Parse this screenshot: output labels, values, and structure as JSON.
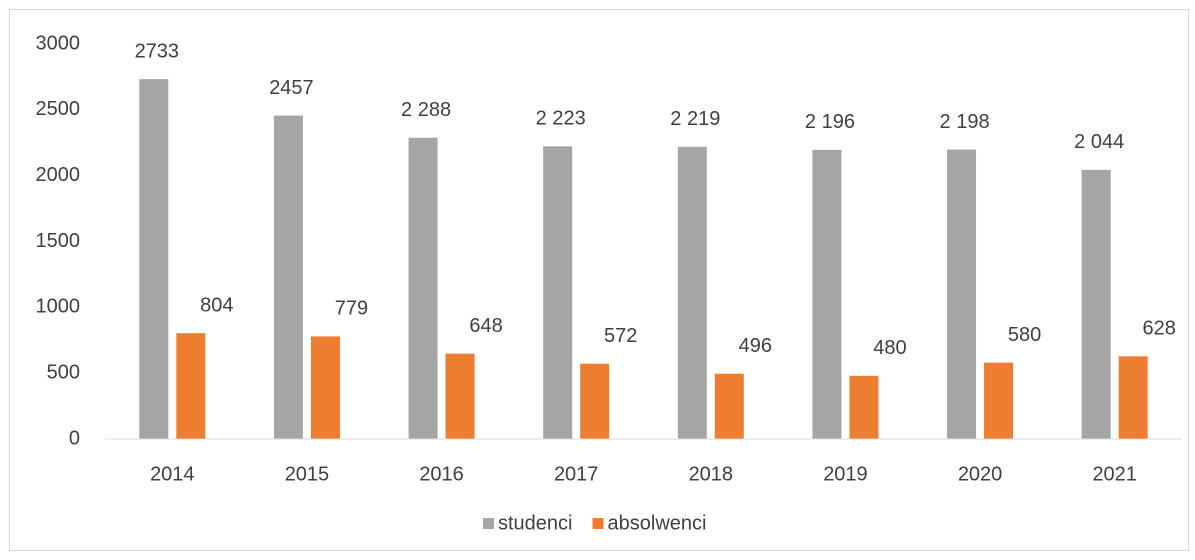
{
  "chart_data": {
    "type": "bar",
    "categories": [
      "2014",
      "2015",
      "2016",
      "2017",
      "2018",
      "2019",
      "2020",
      "2021"
    ],
    "series": [
      {
        "name": "studenci",
        "color": "#a5a5a5",
        "values": [
          2733,
          2457,
          2288,
          2223,
          2219,
          2196,
          2198,
          2044
        ],
        "value_labels": [
          "2733",
          "2457",
          "2 288",
          "2 223",
          "2 219",
          "2 196",
          "2 198",
          "2 044"
        ]
      },
      {
        "name": "absolwenci",
        "color": "#ed7d31",
        "values": [
          804,
          779,
          648,
          572,
          496,
          480,
          580,
          628
        ]
      }
    ],
    "ylim": [
      0,
      3000
    ],
    "yticks": [
      0,
      500,
      1000,
      1500,
      2000,
      2500,
      3000
    ],
    "grid": false,
    "legend": "bottom"
  }
}
